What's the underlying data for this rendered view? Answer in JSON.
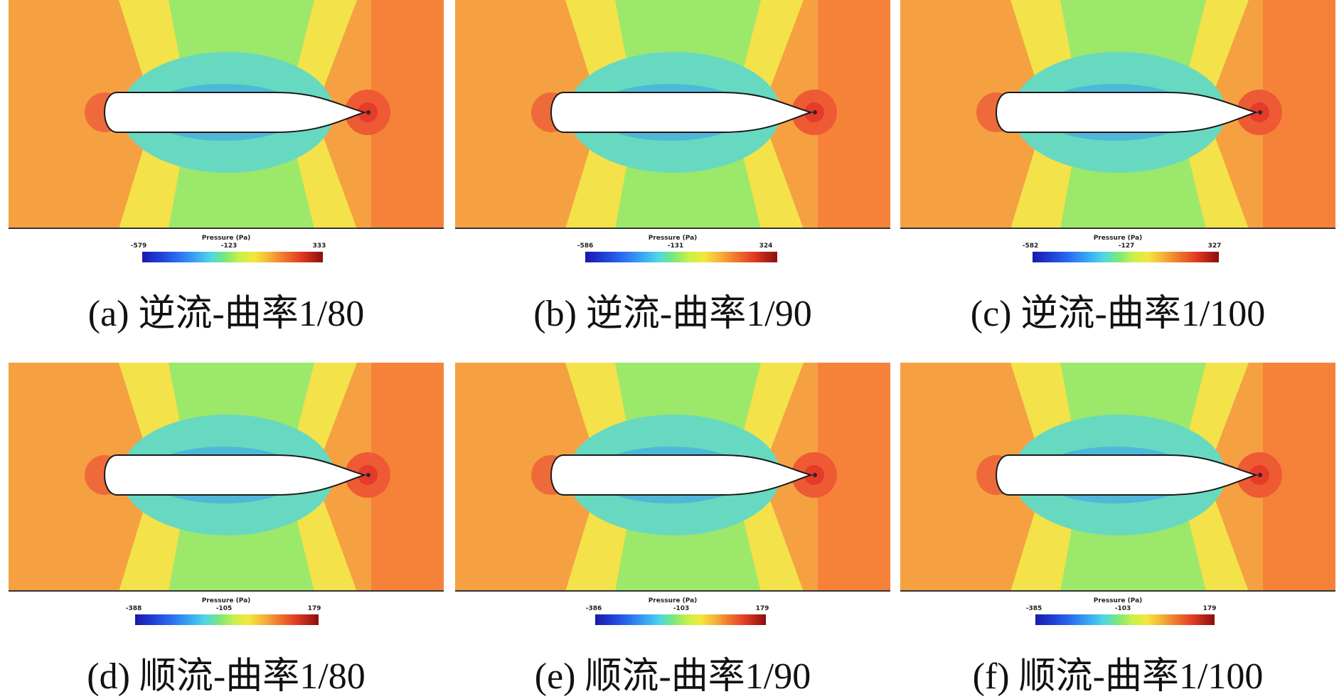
{
  "legend_title": "Pressure (Pa)",
  "panels": [
    {
      "caption": "(a) 逆流-曲率1/80",
      "min": "-579",
      "mid": "-123",
      "max": "333"
    },
    {
      "caption": "(b) 逆流-曲率1/90",
      "min": "-586",
      "mid": "-131",
      "max": "324"
    },
    {
      "caption": "(c) 逆流-曲率1/100",
      "min": "-582",
      "mid": "-127",
      "max": "327"
    },
    {
      "caption": "(d) 顺流-曲率1/80",
      "min": "-388",
      "mid": "-105",
      "max": "179"
    },
    {
      "caption": "(e) 顺流-曲率1/90",
      "min": "-386",
      "mid": "-103",
      "max": "179"
    },
    {
      "caption": "(f) 顺流-曲率1/100",
      "min": "-385",
      "mid": "-103",
      "max": "179"
    }
  ],
  "colors": {
    "far_field": "#f5a142",
    "high": "#f6823a",
    "mid_yellow": "#f3e24a",
    "green": "#9ce86a",
    "low_teal": "#67d9c0",
    "low_blue": "#4fb8d8",
    "body": "#ffffff",
    "outline": "#1a1a1a"
  }
}
